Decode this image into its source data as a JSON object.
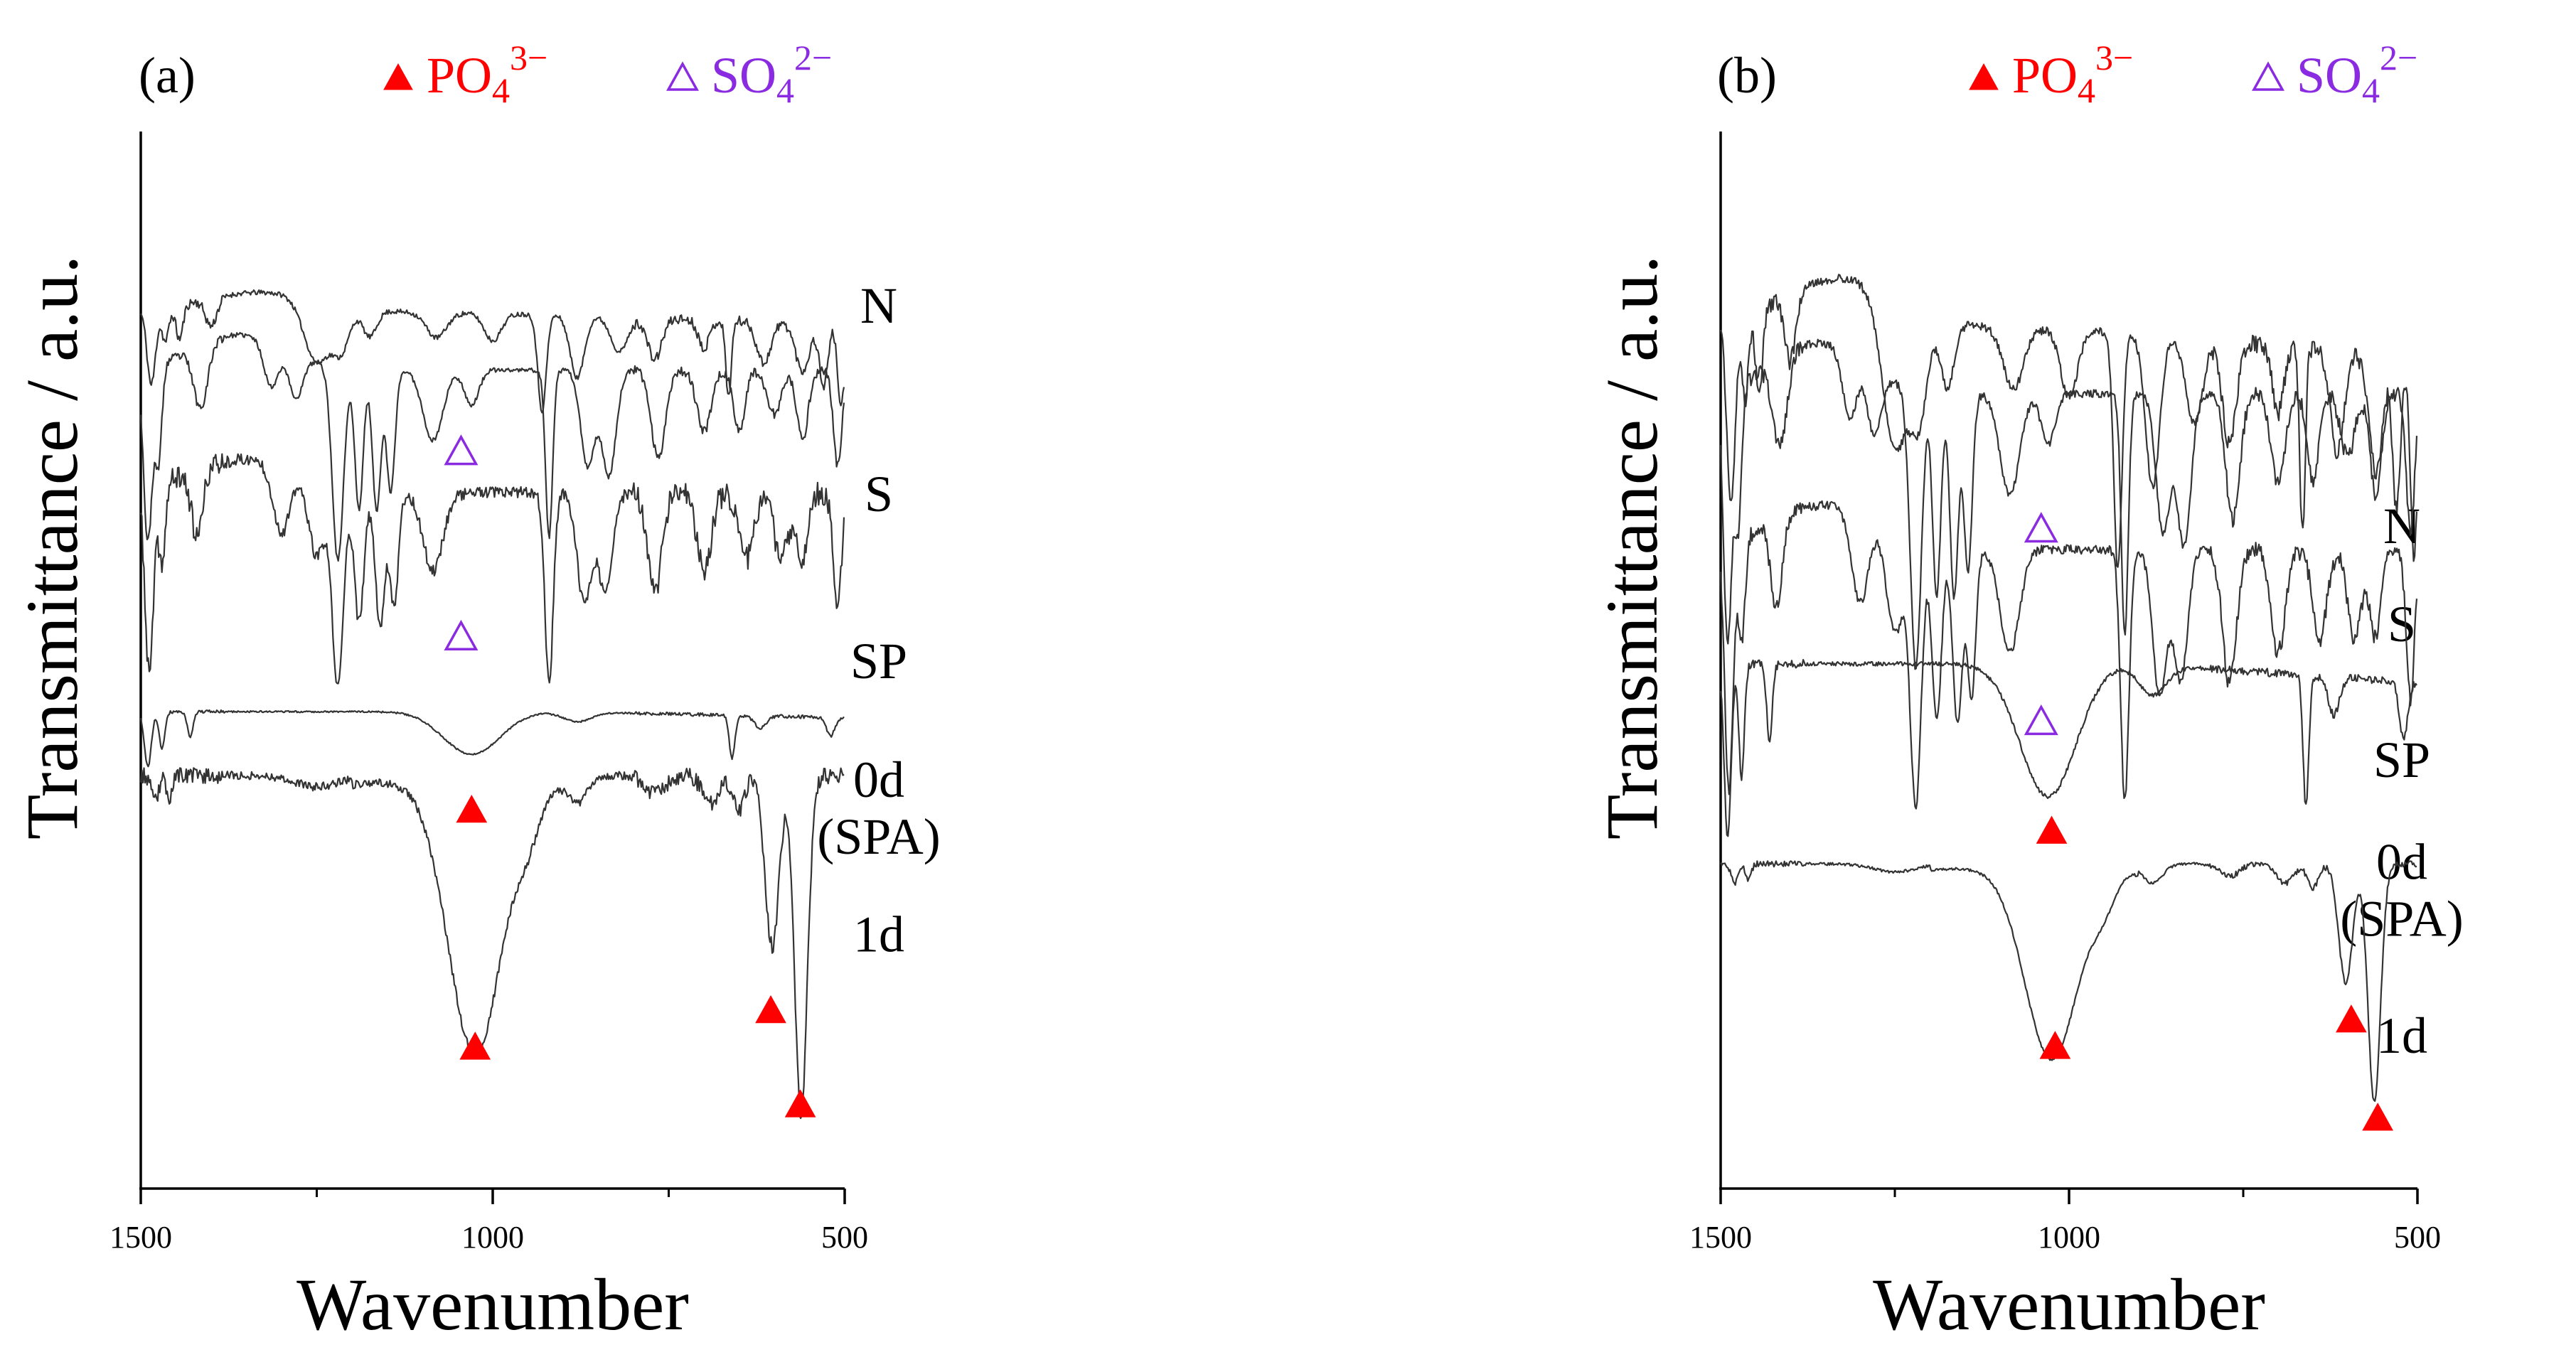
{
  "colors": {
    "phosphate": "#ff0000",
    "sulfate": "#8a2be2",
    "trace": "#333333",
    "axis": "#000000"
  },
  "chart_data": [
    {
      "type": "line",
      "panel_label": "(a)",
      "legend": [
        {
          "marker": "filled-triangle",
          "label": "PO",
          "sub": "4",
          "sup": "3−",
          "color_key": "phosphate"
        },
        {
          "marker": "open-triangle",
          "label": "SO",
          "sub": "4",
          "sup": "2−",
          "color_key": "sulfate"
        }
      ],
      "xlabel": "Wavenumber",
      "ylabel": "Transmittance / a.u.",
      "xlim": [
        1500,
        500
      ],
      "x_reversed": true,
      "xticks": [
        "1500",
        "1000",
        "500"
      ],
      "yaxis_ticks": false,
      "series": [
        {
          "name": "N",
          "label_lines": [
            "N"
          ],
          "offset": 2.3,
          "lo": 0.0,
          "hi": 1.95,
          "shape": "N",
          "noise": 0.07,
          "seed": 11,
          "label_x": 1.45
        },
        {
          "name": "S",
          "label_lines": [
            "S"
          ],
          "offset": 0.0,
          "lo": -2.45,
          "hi": 1.25,
          "shape": "S",
          "noise": 0.035,
          "seed": 23,
          "label_x": -1.65
        },
        {
          "name": "SP",
          "label_lines": [
            "SP"
          ],
          "offset": -2.8,
          "lo": -4.55,
          "hi": -0.8,
          "shape": "SP",
          "noise": 0.09,
          "seed": 37,
          "label_x": -4.4
        },
        {
          "name": "0d (SPA)",
          "label_lines": [
            "0d",
            "(SPA)"
          ],
          "offset": -5.15,
          "lo": -5.85,
          "hi": -4.95,
          "shape": "ZERO",
          "noise": 0.05,
          "seed": 41,
          "label_x": -6.35
        },
        {
          "name": "1d",
          "label_lines": [
            "1d"
          ],
          "offset": -6.25,
          "lo": -11.6,
          "hi": -6.0,
          "shape": "ONE",
          "noise": 0.04,
          "seed": 53,
          "label_x": -8.9
        }
      ],
      "annotations": [
        {
          "type": "sulfate",
          "x": 1045,
          "y": -0.65
        },
        {
          "type": "sulfate",
          "x": 1045,
          "y": -3.7
        },
        {
          "type": "phosphate",
          "x": 1030,
          "y": -6.55
        },
        {
          "type": "phosphate",
          "x": 1025,
          "y": -10.45
        },
        {
          "type": "phosphate",
          "x": 605,
          "y": -9.85
        },
        {
          "type": "phosphate",
          "x": 563,
          "y": -11.4
        }
      ],
      "ylim": [
        -12.8,
        4.6
      ]
    },
    {
      "type": "line",
      "panel_label": "(b)",
      "legend": [
        {
          "marker": "filled-triangle",
          "label": "PO",
          "sub": "4",
          "sup": "3−",
          "color_key": "phosphate"
        },
        {
          "marker": "open-triangle",
          "label": "SO",
          "sub": "4",
          "sup": "2−",
          "color_key": "sulfate"
        }
      ],
      "xlabel": "Wavenumber",
      "ylabel": "Transmittance / a.u.",
      "xlim": [
        1500,
        500
      ],
      "x_reversed": true,
      "xticks": [
        "1500",
        "1000",
        "500"
      ],
      "yaxis_ticks": false,
      "series": [
        {
          "name": "N",
          "label_lines": [
            "N"
          ],
          "offset": 2.3,
          "lo": -1.3,
          "hi": 2.55,
          "shape": "N",
          "noise": 0.05,
          "seed": 61,
          "label_x": -0.95
        },
        {
          "name": "S",
          "label_lines": [
            "S"
          ],
          "offset": 0.9,
          "lo": -2.6,
          "hi": 1.7,
          "shape": "S",
          "noise": 0.04,
          "seed": 67,
          "label_x": -2.25
        },
        {
          "name": "SP",
          "label_lines": [
            "SP"
          ],
          "offset": -0.55,
          "lo": -4.45,
          "hi": -0.45,
          "shape": "SP",
          "noise": 0.05,
          "seed": 71,
          "label_x": -4.05
        },
        {
          "name": "0d (SPA)",
          "label_lines": [
            "0d",
            "(SPA)"
          ],
          "offset": -2.4,
          "lo": -4.8,
          "hi": -2.55,
          "shape": "ZERO",
          "noise": 0.04,
          "seed": 79,
          "label_x": -5.4
        },
        {
          "name": "1d",
          "label_lines": [
            "1d"
          ],
          "offset": -5.35,
          "lo": -8.35,
          "hi": -5.2,
          "shape": "ONE",
          "noise": 0.02,
          "seed": 83,
          "label_x": -7.7
        }
      ],
      "annotations": [
        {
          "type": "sulfate",
          "x": 1040,
          "y": -0.75
        },
        {
          "type": "sulfate",
          "x": 1040,
          "y": -3.3
        },
        {
          "type": "phosphate",
          "x": 1025,
          "y": -4.75
        },
        {
          "type": "phosphate",
          "x": 1020,
          "y": -7.6
        },
        {
          "type": "phosphate",
          "x": 595,
          "y": -7.25
        },
        {
          "type": "phosphate",
          "x": 557,
          "y": -8.55
        }
      ],
      "ylim": [
        -9.5,
        4.5
      ]
    }
  ]
}
